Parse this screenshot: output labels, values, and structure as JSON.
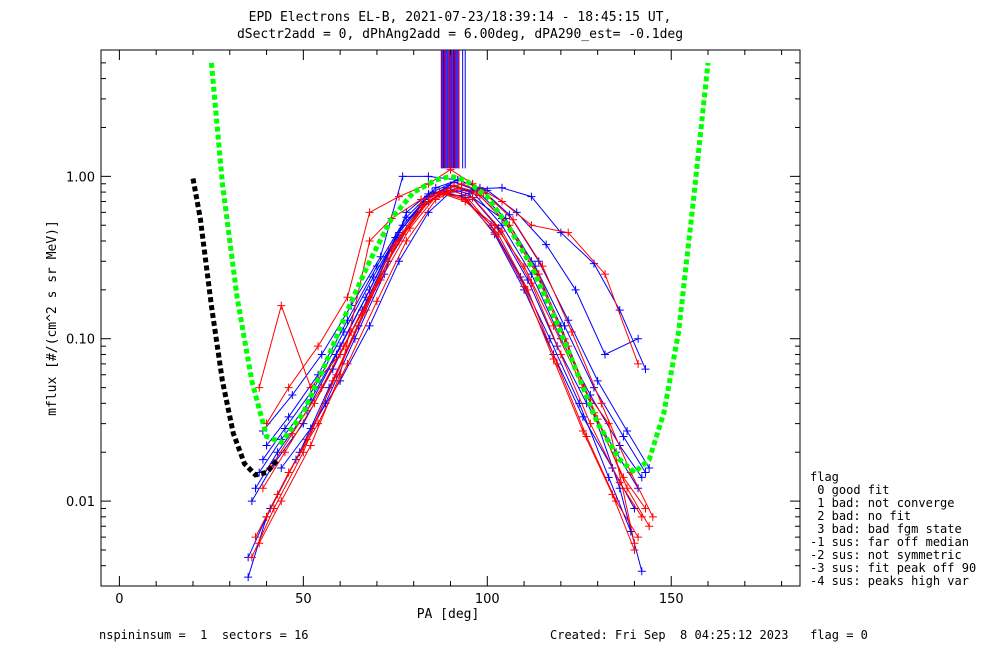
{
  "title_line1": "EPD Electrons EL-B, 2021-07-23/18:39:14 - 18:45:15 UT,",
  "title_line2": "dSectr2add = 0, dPhAng2add = 6.00deg, dPA290_est=  -0.1deg",
  "footer_left": "nspininsum =  1  sectors = 16",
  "footer_right": "Created: Fri Sep  8 04:25:12 2023   flag = 0",
  "legend": {
    "title": "flag",
    "items": [
      " 0 good fit",
      " 1 bad: not converge",
      " 2 bad: no fit",
      " 3 bad: bad fgm state",
      "-1 sus: far off median",
      "-2 sus: not symmetric",
      "-3 sus: fit peak off 90",
      "-4 sus: peaks high var"
    ]
  },
  "colors": {
    "blue": "#0000ff",
    "red": "#ff0000",
    "green": "#00ff00",
    "black": "#000000"
  },
  "chart_data": {
    "type": "line",
    "xlabel": "PA [deg]",
    "ylabel": "mflux [#/(cm^2 s sr MeV)]",
    "xlim": [
      -5,
      185
    ],
    "ylim": [
      0.003,
      6.0
    ],
    "yscale": "log",
    "x_ticks": [
      0,
      50,
      100,
      150
    ],
    "y_ticks": [
      {
        "value": 0.01,
        "label": "0.01"
      },
      {
        "value": 0.1,
        "label": "0.10"
      },
      {
        "value": 1.0,
        "label": "1.00"
      }
    ],
    "series": [
      {
        "color": "blue",
        "style": "line+plus",
        "x": [
          38,
          44,
          52,
          60,
          68,
          76,
          84,
          90,
          96,
          104,
          112,
          120,
          128,
          136,
          142
        ],
        "y": [
          0.015,
          0.024,
          0.042,
          0.09,
          0.2,
          0.45,
          0.75,
          0.88,
          0.8,
          0.5,
          0.25,
          0.1,
          0.045,
          0.022,
          0.014
        ]
      },
      {
        "color": "blue",
        "style": "line+plus",
        "x": [
          37,
          43,
          51,
          59,
          67,
          75,
          83,
          89,
          95,
          103,
          111,
          119,
          127,
          135,
          141
        ],
        "y": [
          0.012,
          0.02,
          0.036,
          0.08,
          0.18,
          0.42,
          0.72,
          0.85,
          0.78,
          0.48,
          0.23,
          0.09,
          0.04,
          0.02,
          0.012
        ]
      },
      {
        "color": "blue",
        "style": "line+plus",
        "x": [
          39,
          45,
          53,
          61,
          69,
          77,
          85,
          91,
          97,
          105,
          113,
          121,
          129,
          137,
          143
        ],
        "y": [
          0.018,
          0.028,
          0.05,
          0.11,
          0.24,
          0.5,
          0.8,
          0.92,
          0.82,
          0.55,
          0.28,
          0.12,
          0.05,
          0.025,
          0.015
        ]
      },
      {
        "color": "blue",
        "style": "line+plus",
        "x": [
          36,
          42,
          50,
          58,
          66,
          74,
          82,
          88,
          94,
          102,
          110,
          118,
          126,
          134,
          140
        ],
        "y": [
          0.01,
          0.017,
          0.03,
          0.065,
          0.15,
          0.36,
          0.66,
          0.8,
          0.74,
          0.44,
          0.2,
          0.08,
          0.033,
          0.016,
          0.009
        ]
      },
      {
        "color": "blue",
        "style": "line+plus",
        "x": [
          40,
          46,
          54,
          62,
          70,
          78,
          86,
          92,
          98,
          106,
          114,
          122,
          130,
          138,
          144
        ],
        "y": [
          0.022,
          0.033,
          0.06,
          0.13,
          0.28,
          0.56,
          0.85,
          0.95,
          0.85,
          0.58,
          0.3,
          0.13,
          0.055,
          0.027,
          0.016
        ]
      },
      {
        "color": "blue",
        "style": "line+plus",
        "x": [
          35,
          41,
          49,
          57,
          65,
          73,
          81,
          87,
          93,
          101,
          109,
          117,
          125,
          133,
          139
        ],
        "y": [
          0.0045,
          0.009,
          0.02,
          0.05,
          0.12,
          0.3,
          0.6,
          0.78,
          0.76,
          0.5,
          0.24,
          0.1,
          0.04,
          0.014,
          0.0065
        ]
      },
      {
        "color": "blue",
        "style": "line+plus",
        "x": [
          35,
          40,
          48,
          56,
          64,
          72,
          78,
          84,
          90,
          96,
          104,
          112,
          120,
          128,
          136,
          142
        ],
        "y": [
          0.0034,
          0.008,
          0.018,
          0.04,
          0.1,
          0.25,
          0.6,
          0.78,
          0.82,
          0.74,
          0.55,
          0.3,
          0.12,
          0.04,
          0.012,
          0.0037
        ]
      },
      {
        "color": "blue",
        "style": "line+plus",
        "x": [
          39,
          47,
          55,
          63,
          71,
          77,
          84,
          92,
          100,
          108,
          116,
          124,
          132,
          141
        ],
        "y": [
          0.027,
          0.045,
          0.08,
          0.16,
          0.32,
          1.0,
          1.0,
          0.95,
          0.82,
          0.6,
          0.38,
          0.2,
          0.08,
          0.1
        ]
      },
      {
        "color": "blue",
        "style": "line+plus",
        "x": [
          44,
          52,
          60,
          68,
          76,
          84,
          90,
          98,
          104,
          112,
          120,
          129,
          136,
          143
        ],
        "y": [
          0.016,
          0.028,
          0.055,
          0.12,
          0.3,
          0.6,
          0.8,
          0.84,
          0.85,
          0.75,
          0.45,
          0.29,
          0.15,
          0.065
        ]
      },
      {
        "color": "red",
        "style": "line+plus",
        "x": [
          38,
          44,
          52,
          60,
          68,
          76,
          84,
          90,
          96,
          104,
          112,
          120,
          128,
          136,
          142
        ],
        "y": [
          0.05,
          0.16,
          0.05,
          0.08,
          0.18,
          0.4,
          0.7,
          0.82,
          0.74,
          0.46,
          0.22,
          0.08,
          0.03,
          0.013,
          0.008
        ]
      },
      {
        "color": "red",
        "style": "line+plus",
        "x": [
          37,
          43,
          51,
          59,
          67,
          75,
          83,
          89,
          95,
          103,
          111,
          119,
          127,
          135,
          141
        ],
        "y": [
          0.006,
          0.011,
          0.024,
          0.06,
          0.15,
          0.38,
          0.68,
          0.8,
          0.72,
          0.44,
          0.2,
          0.07,
          0.025,
          0.01,
          0.006
        ]
      },
      {
        "color": "red",
        "style": "line+plus",
        "x": [
          40,
          46,
          54,
          62,
          70,
          78,
          86,
          92,
          98,
          106,
          114,
          122,
          130,
          138,
          144
        ],
        "y": [
          0.008,
          0.015,
          0.03,
          0.07,
          0.17,
          0.4,
          0.72,
          0.84,
          0.76,
          0.5,
          0.25,
          0.09,
          0.032,
          0.012,
          0.007
        ]
      },
      {
        "color": "red",
        "style": "line+plus",
        "x": [
          36,
          42,
          50,
          58,
          66,
          74,
          82,
          88,
          94,
          102,
          110,
          118,
          126,
          134,
          140
        ],
        "y": [
          0.0045,
          0.009,
          0.02,
          0.055,
          0.14,
          0.36,
          0.66,
          0.79,
          0.72,
          0.45,
          0.21,
          0.075,
          0.027,
          0.011,
          0.005
        ]
      },
      {
        "color": "red",
        "style": "line+plus",
        "x": [
          39,
          45,
          53,
          61,
          69,
          77,
          85,
          91,
          97,
          105,
          113,
          121,
          129,
          137,
          143
        ],
        "y": [
          0.012,
          0.02,
          0.04,
          0.09,
          0.2,
          0.44,
          0.76,
          0.88,
          0.8,
          0.52,
          0.26,
          0.1,
          0.035,
          0.014,
          0.009
        ]
      },
      {
        "color": "red",
        "style": "line+plus",
        "x": [
          40,
          46,
          54,
          62,
          68,
          76,
          84,
          90,
          96,
          104,
          112,
          122,
          132,
          141
        ],
        "y": [
          0.03,
          0.05,
          0.09,
          0.18,
          0.6,
          0.75,
          0.9,
          1.1,
          0.9,
          0.7,
          0.5,
          0.45,
          0.25,
          0.07
        ]
      },
      {
        "color": "red",
        "style": "line+plus",
        "x": [
          41,
          47,
          55,
          63,
          71,
          79,
          87,
          93,
          99,
          107,
          115,
          123,
          131,
          139,
          145
        ],
        "y": [
          0.016,
          0.026,
          0.05,
          0.11,
          0.23,
          0.48,
          0.8,
          0.9,
          0.8,
          0.54,
          0.28,
          0.11,
          0.04,
          0.015,
          0.008
        ]
      },
      {
        "color": "red",
        "style": "line+plus",
        "x": [
          38,
          44,
          52,
          60,
          68,
          74,
          82,
          88,
          94,
          102,
          110,
          118,
          126,
          133,
          140
        ],
        "y": [
          0.0055,
          0.01,
          0.022,
          0.06,
          0.4,
          0.55,
          0.72,
          0.78,
          0.7,
          0.5,
          0.28,
          0.12,
          0.05,
          0.03,
          0.0055
        ]
      },
      {
        "color": "green",
        "style": "dashed",
        "x": [
          25,
          28,
          32,
          36,
          40,
          44,
          50,
          56,
          62,
          68,
          74,
          80,
          86,
          90,
          94,
          100,
          106,
          112,
          118,
          124,
          130,
          136,
          140,
          144,
          148,
          152,
          156,
          160
        ],
        "y": [
          5.0,
          0.9,
          0.18,
          0.055,
          0.025,
          0.023,
          0.035,
          0.07,
          0.15,
          0.3,
          0.55,
          0.8,
          0.95,
          1.0,
          0.95,
          0.75,
          0.48,
          0.28,
          0.14,
          0.065,
          0.03,
          0.018,
          0.015,
          0.018,
          0.035,
          0.11,
          0.7,
          5.0
        ]
      },
      {
        "color": "black",
        "style": "dashed",
        "x": [
          20,
          22,
          25,
          28,
          31,
          34,
          37,
          40,
          43
        ],
        "y": [
          0.97,
          0.55,
          0.16,
          0.055,
          0.026,
          0.017,
          0.0145,
          0.015,
          0.018
        ]
      }
    ],
    "vertical_lines": [
      {
        "color": "blue",
        "x": [
          87.5,
          87.8,
          88.1,
          88.4,
          88.7,
          89.0,
          89.3,
          89.6,
          89.9,
          90.2,
          90.5,
          90.8,
          91.1,
          91.4,
          91.7,
          92.0,
          92.3,
          93.3,
          94.0
        ],
        "y_from": 1.12
      },
      {
        "color": "red",
        "x": [
          87.7,
          88.6,
          89.5,
          90.4,
          91.3,
          92.2
        ],
        "y_from": 1.12
      }
    ]
  }
}
